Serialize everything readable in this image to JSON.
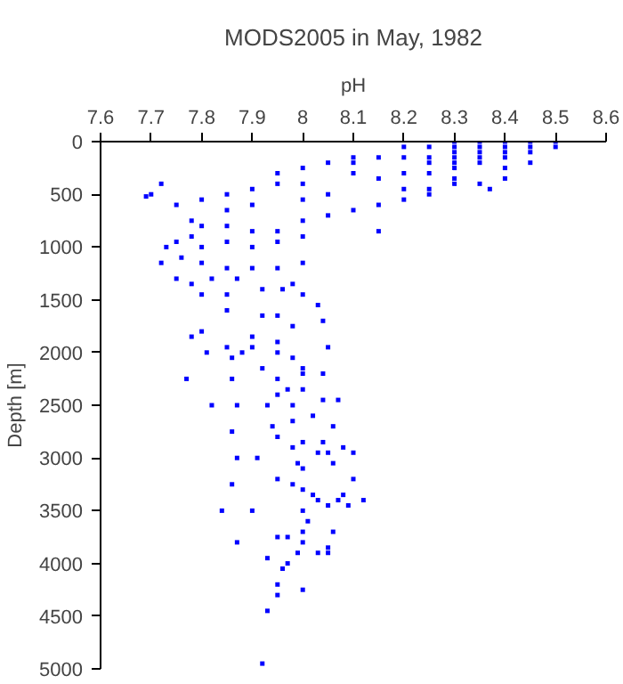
{
  "chart_data": {
    "type": "scatter",
    "title": "MODS2005 in May, 1982",
    "xlabel": "pH",
    "ylabel": "Depth [m]",
    "xlim": [
      7.6,
      8.6
    ],
    "xticks": [
      7.6,
      7.7,
      7.8,
      7.9,
      8,
      8.1,
      8.2,
      8.3,
      8.4,
      8.5,
      8.6
    ],
    "ylim": [
      5000,
      0
    ],
    "yticks": [
      0,
      500,
      1000,
      1500,
      2000,
      2500,
      3000,
      3500,
      4000,
      4500,
      5000
    ],
    "grid": false,
    "marker": "square",
    "series": [
      {
        "color": "#0000ff",
        "x": [
          8.3,
          8.35,
          8.4,
          8.45,
          8.5,
          8.5,
          8.45,
          8.4,
          8.35,
          8.3,
          8.25,
          8.2,
          8.3,
          8.35,
          8.4,
          8.45,
          8.25,
          8.3,
          8.35,
          8.4,
          8.2,
          8.15,
          8.1,
          8.3,
          8.25,
          8.35,
          8.45,
          8.4,
          8.3,
          8.25,
          8.2,
          8.3,
          8.1,
          8.05,
          8.0,
          7.95,
          8.1,
          8.15,
          8.3,
          8.25,
          8.2,
          8.35,
          8.25,
          8.2,
          8.15,
          8.1,
          8.0,
          7.95,
          7.9,
          7.85,
          7.8,
          8.05,
          8.0,
          7.9,
          7.85,
          8.05,
          8.0,
          8.15,
          8.4,
          8.37,
          7.7,
          7.69,
          7.72,
          7.75,
          7.78,
          7.8,
          7.85,
          7.9,
          7.95,
          8.0,
          7.78,
          7.75,
          7.8,
          7.85,
          7.9,
          7.95,
          7.73,
          7.72,
          7.76,
          7.8,
          7.85,
          7.9,
          7.95,
          8.0,
          7.82,
          7.78,
          7.75,
          7.87,
          7.92,
          7.96,
          7.98,
          8.0,
          7.85,
          7.8,
          8.03,
          7.85,
          7.92,
          7.95,
          8.04,
          7.98,
          7.8,
          7.78,
          7.9,
          7.95,
          7.81,
          7.85,
          7.86,
          7.88,
          7.9,
          7.95,
          7.98,
          7.92,
          7.95,
          8.0,
          8.0,
          7.77,
          7.86,
          7.97,
          7.95,
          8.0,
          8.04,
          8.07,
          8.04,
          8.05,
          7.82,
          7.87,
          7.93,
          7.98,
          7.98,
          8.02,
          8.06,
          7.86,
          7.94,
          7.95,
          8.0,
          7.98,
          8.03,
          8.05,
          8.1,
          8.08,
          8.04,
          7.87,
          7.91,
          7.99,
          8.06,
          8.0,
          7.95,
          7.86,
          8.1,
          7.98,
          8.0,
          8.02,
          8.03,
          8.08,
          8.07,
          8.12,
          8.05,
          8.09,
          7.84,
          7.9,
          8.0,
          8.01,
          7.87,
          7.95,
          7.97,
          8.0,
          8.0,
          8.06,
          8.05,
          8.05,
          8.03,
          7.99,
          7.93,
          7.97,
          7.96,
          7.95,
          7.95,
          8.0,
          7.93,
          7.92
        ],
        "values": [
          0,
          0,
          0,
          0,
          0,
          50,
          50,
          50,
          50,
          50,
          50,
          50,
          100,
          100,
          100,
          100,
          150,
          150,
          150,
          150,
          150,
          150,
          150,
          200,
          200,
          200,
          200,
          250,
          250,
          300,
          300,
          350,
          200,
          200,
          250,
          300,
          300,
          350,
          400,
          450,
          450,
          400,
          500,
          550,
          600,
          650,
          400,
          400,
          450,
          500,
          550,
          500,
          550,
          600,
          650,
          700,
          750,
          850,
          350,
          450,
          500,
          520,
          400,
          600,
          750,
          800,
          800,
          850,
          850,
          900,
          900,
          950,
          1000,
          950,
          1000,
          950,
          1000,
          1150,
          1100,
          1150,
          1200,
          1200,
          1200,
          1150,
          1300,
          1350,
          1300,
          1300,
          1400,
          1400,
          1350,
          1450,
          1450,
          1450,
          1550,
          1600,
          1650,
          1650,
          1700,
          1750,
          1800,
          1850,
          1850,
          1900,
          2000,
          1950,
          2050,
          2000,
          1950,
          2000,
          2050,
          2150,
          2250,
          2200,
          2150,
          2250,
          2250,
          2350,
          2400,
          2350,
          2450,
          2450,
          2200,
          1950,
          2500,
          2500,
          2500,
          2500,
          2650,
          2600,
          2700,
          2750,
          2700,
          2800,
          2850,
          2900,
          2950,
          2950,
          2950,
          2900,
          2850,
          3000,
          3000,
          3050,
          3050,
          3100,
          3200,
          3250,
          3200,
          3250,
          3300,
          3350,
          3400,
          3350,
          3400,
          3400,
          3450,
          3450,
          3500,
          3500,
          3500,
          3600,
          3800,
          3750,
          3750,
          3700,
          3800,
          3700,
          3850,
          3900,
          3900,
          3900,
          3950,
          4000,
          4050,
          4200,
          4300,
          4250,
          4450,
          4950
        ]
      }
    ]
  }
}
